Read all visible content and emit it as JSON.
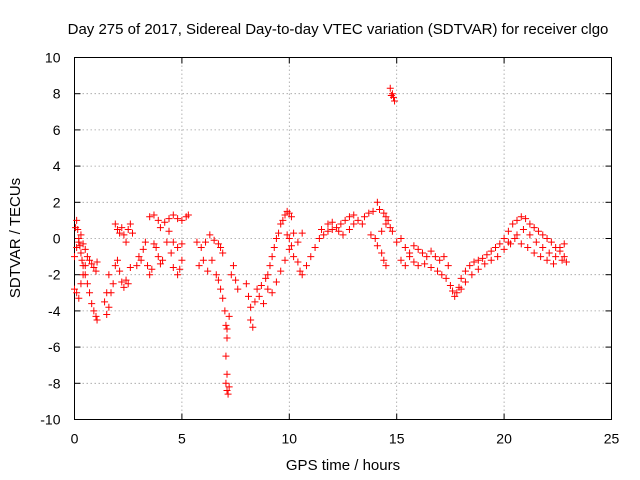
{
  "chart_data": {
    "type": "scatter",
    "title": "Day 275 of 2017, Sidereal Day-to-day VTEC variation (SDTVAR) for receiver clgo",
    "xlabel": "GPS time / hours",
    "ylabel": "SDTVAR / TECUs",
    "xlim": [
      0,
      25
    ],
    "ylim": [
      -10,
      10
    ],
    "xticks": [
      0,
      5,
      10,
      15,
      20,
      25
    ],
    "yticks": [
      -10,
      -8,
      -6,
      -4,
      -2,
      0,
      2,
      4,
      6,
      8,
      10
    ],
    "grid": true,
    "marker": "+",
    "series_color": "#ff0000",
    "series": [
      {
        "name": "SDTVAR",
        "points": [
          [
            0.0,
            -1.0
          ],
          [
            0.05,
            0.6
          ],
          [
            0.1,
            1.0
          ],
          [
            0.15,
            0.5
          ],
          [
            0.2,
            0.0
          ],
          [
            0.25,
            -0.4
          ],
          [
            0.3,
            -0.8
          ],
          [
            0.35,
            -1.2
          ],
          [
            0.4,
            -1.5
          ],
          [
            0.5,
            -2.0
          ],
          [
            0.6,
            -2.5
          ],
          [
            0.7,
            -3.0
          ],
          [
            0.8,
            -3.6
          ],
          [
            0.9,
            -4.0
          ],
          [
            1.0,
            -4.3
          ],
          [
            1.05,
            -4.5
          ],
          [
            0.0,
            -2.8
          ],
          [
            0.1,
            -3.0
          ],
          [
            0.2,
            -3.3
          ],
          [
            0.3,
            -2.5
          ],
          [
            0.4,
            -2.0
          ],
          [
            0.5,
            -1.5
          ],
          [
            0.1,
            -0.5
          ],
          [
            0.2,
            -0.2
          ],
          [
            0.3,
            0.2
          ],
          [
            0.4,
            -0.3
          ],
          [
            0.5,
            -0.6
          ],
          [
            0.6,
            -1.0
          ],
          [
            0.7,
            -1.2
          ],
          [
            0.8,
            -1.4
          ],
          [
            0.9,
            -1.6
          ],
          [
            1.0,
            -1.8
          ],
          [
            1.05,
            -1.3
          ],
          [
            1.4,
            -3.5
          ],
          [
            1.5,
            -4.2
          ],
          [
            1.6,
            -3.8
          ],
          [
            1.7,
            -3.0
          ],
          [
            1.8,
            -2.5
          ],
          [
            1.5,
            -3.0
          ],
          [
            1.6,
            -2.0
          ],
          [
            1.9,
            0.8
          ],
          [
            2.0,
            0.5
          ],
          [
            2.1,
            0.3
          ],
          [
            2.2,
            0.6
          ],
          [
            2.3,
            0.2
          ],
          [
            2.4,
            -0.2
          ],
          [
            2.5,
            0.5
          ],
          [
            2.6,
            0.8
          ],
          [
            2.7,
            0.3
          ],
          [
            1.9,
            -1.5
          ],
          [
            2.0,
            -1.2
          ],
          [
            2.1,
            -1.8
          ],
          [
            2.2,
            -2.4
          ],
          [
            2.3,
            -2.7
          ],
          [
            2.4,
            -2.3
          ],
          [
            2.5,
            -2.5
          ],
          [
            2.6,
            -1.6
          ],
          [
            2.9,
            -1.5
          ],
          [
            3.0,
            -1.0
          ],
          [
            3.1,
            -1.2
          ],
          [
            3.2,
            -0.6
          ],
          [
            3.3,
            -0.2
          ],
          [
            3.4,
            -1.5
          ],
          [
            3.5,
            -2.0
          ],
          [
            3.6,
            -1.7
          ],
          [
            3.5,
            1.2
          ],
          [
            3.7,
            1.3
          ],
          [
            3.9,
            1.0
          ],
          [
            4.0,
            0.6
          ],
          [
            4.2,
            0.9
          ],
          [
            4.4,
            1.1
          ],
          [
            4.6,
            1.3
          ],
          [
            4.8,
            1.1
          ],
          [
            5.0,
            1.0
          ],
          [
            5.2,
            1.2
          ],
          [
            5.3,
            1.3
          ],
          [
            3.7,
            -0.3
          ],
          [
            3.8,
            -0.5
          ],
          [
            3.9,
            -1.0
          ],
          [
            4.0,
            -1.4
          ],
          [
            4.1,
            -1.2
          ],
          [
            4.3,
            -0.2
          ],
          [
            4.5,
            -0.8
          ],
          [
            4.6,
            -1.6
          ],
          [
            4.8,
            -2.0
          ],
          [
            4.9,
            -1.7
          ],
          [
            5.0,
            -1.2
          ],
          [
            4.4,
            0.4
          ],
          [
            4.6,
            -0.2
          ],
          [
            4.8,
            -0.5
          ],
          [
            5.0,
            -0.3
          ],
          [
            5.7,
            -0.2
          ],
          [
            5.9,
            -0.5
          ],
          [
            6.1,
            -0.2
          ],
          [
            6.3,
            0.2
          ],
          [
            6.5,
            -0.1
          ],
          [
            6.7,
            -0.3
          ],
          [
            6.8,
            -0.5
          ],
          [
            6.9,
            -0.8
          ],
          [
            5.8,
            -1.5
          ],
          [
            6.0,
            -1.2
          ],
          [
            6.2,
            -1.8
          ],
          [
            6.4,
            -1.2
          ],
          [
            6.6,
            -2.0
          ],
          [
            6.7,
            -2.3
          ],
          [
            6.8,
            -2.8
          ],
          [
            6.9,
            -3.3
          ],
          [
            7.0,
            -4.0
          ],
          [
            7.05,
            -4.8
          ],
          [
            7.1,
            -5.5
          ],
          [
            7.05,
            -6.5
          ],
          [
            7.1,
            -7.5
          ],
          [
            7.05,
            -8.0
          ],
          [
            7.1,
            -8.4
          ],
          [
            7.15,
            -8.6
          ],
          [
            7.2,
            -8.2
          ],
          [
            7.1,
            -5.0
          ],
          [
            7.2,
            -4.3
          ],
          [
            7.3,
            -2.0
          ],
          [
            7.4,
            -1.5
          ],
          [
            7.5,
            -2.3
          ],
          [
            7.6,
            -2.8
          ],
          [
            8.0,
            -2.5
          ],
          [
            8.1,
            -3.2
          ],
          [
            8.2,
            -3.8
          ],
          [
            8.2,
            -4.5
          ],
          [
            8.3,
            -4.9
          ],
          [
            8.4,
            -3.5
          ],
          [
            8.5,
            -2.8
          ],
          [
            8.6,
            -3.2
          ],
          [
            8.7,
            -2.6
          ],
          [
            8.8,
            -3.6
          ],
          [
            8.9,
            -2.2
          ],
          [
            9.0,
            -2.0
          ],
          [
            9.1,
            -1.5
          ],
          [
            9.2,
            -1.0
          ],
          [
            9.3,
            -0.5
          ],
          [
            9.4,
            0.0
          ],
          [
            9.5,
            0.3
          ],
          [
            9.6,
            0.8
          ],
          [
            9.7,
            1.0
          ],
          [
            9.8,
            1.3
          ],
          [
            9.9,
            1.5
          ],
          [
            10.0,
            1.4
          ],
          [
            10.1,
            1.2
          ],
          [
            9.0,
            -2.8
          ],
          [
            9.2,
            -3.0
          ],
          [
            9.4,
            -2.4
          ],
          [
            9.6,
            -1.8
          ],
          [
            9.8,
            -1.2
          ],
          [
            10.0,
            -0.6
          ],
          [
            10.2,
            -1.0
          ],
          [
            10.4,
            -1.3
          ],
          [
            10.5,
            -1.8
          ],
          [
            10.6,
            -2.0
          ],
          [
            9.9,
            0.2
          ],
          [
            10.0,
            0.0
          ],
          [
            10.1,
            -0.4
          ],
          [
            10.2,
            0.3
          ],
          [
            10.4,
            -0.2
          ],
          [
            10.6,
            0.3
          ],
          [
            10.8,
            -1.5
          ],
          [
            11.0,
            -1.0
          ],
          [
            11.2,
            -0.5
          ],
          [
            11.4,
            0.0
          ],
          [
            11.6,
            0.2
          ],
          [
            11.8,
            0.4
          ],
          [
            12.0,
            0.5
          ],
          [
            12.2,
            0.6
          ],
          [
            12.4,
            0.8
          ],
          [
            12.6,
            1.0
          ],
          [
            12.8,
            1.2
          ],
          [
            13.0,
            1.3
          ],
          [
            13.2,
            1.0
          ],
          [
            13.4,
            0.8
          ],
          [
            11.5,
            0.5
          ],
          [
            11.8,
            0.8
          ],
          [
            12.0,
            0.9
          ],
          [
            12.3,
            0.4
          ],
          [
            12.5,
            0.2
          ],
          [
            12.8,
            0.5
          ],
          [
            13.0,
            0.8
          ],
          [
            13.5,
            1.2
          ],
          [
            13.7,
            1.4
          ],
          [
            13.9,
            1.5
          ],
          [
            14.1,
            2.0
          ],
          [
            14.2,
            1.6
          ],
          [
            14.4,
            1.4
          ],
          [
            14.5,
            1.2
          ],
          [
            14.6,
            1.0
          ],
          [
            14.7,
            0.6
          ],
          [
            14.8,
            0.4
          ],
          [
            13.8,
            0.2
          ],
          [
            14.0,
            0.0
          ],
          [
            14.1,
            -0.4
          ],
          [
            14.3,
            -0.8
          ],
          [
            14.4,
            -1.2
          ],
          [
            14.5,
            -1.5
          ],
          [
            14.3,
            0.4
          ],
          [
            14.5,
            0.8
          ],
          [
            14.7,
            8.3
          ],
          [
            14.8,
            8.0
          ],
          [
            14.85,
            7.8
          ],
          [
            14.9,
            7.6
          ],
          [
            14.75,
            7.9
          ],
          [
            15.0,
            -0.2
          ],
          [
            15.2,
            0.0
          ],
          [
            15.4,
            -0.5
          ],
          [
            15.6,
            -0.8
          ],
          [
            15.8,
            -0.4
          ],
          [
            16.0,
            -0.6
          ],
          [
            16.2,
            -0.8
          ],
          [
            16.4,
            -1.0
          ],
          [
            16.6,
            -0.7
          ],
          [
            16.8,
            -1.0
          ],
          [
            17.0,
            -1.2
          ],
          [
            17.2,
            -1.0
          ],
          [
            17.4,
            -1.5
          ],
          [
            15.2,
            -1.2
          ],
          [
            15.4,
            -1.5
          ],
          [
            15.6,
            -1.0
          ],
          [
            15.8,
            -1.3
          ],
          [
            16.0,
            -1.5
          ],
          [
            16.3,
            -1.4
          ],
          [
            16.6,
            -1.6
          ],
          [
            16.9,
            -1.8
          ],
          [
            17.1,
            -2.0
          ],
          [
            17.3,
            -2.2
          ],
          [
            17.5,
            -2.6
          ],
          [
            17.6,
            -2.9
          ],
          [
            17.7,
            -3.2
          ],
          [
            17.8,
            -3.0
          ],
          [
            17.9,
            -2.7
          ],
          [
            18.0,
            -2.2
          ],
          [
            18.2,
            -1.8
          ],
          [
            18.4,
            -1.5
          ],
          [
            18.6,
            -1.3
          ],
          [
            18.8,
            -1.2
          ],
          [
            19.0,
            -1.1
          ],
          [
            19.2,
            -0.9
          ],
          [
            19.4,
            -0.7
          ],
          [
            19.6,
            -0.5
          ],
          [
            19.8,
            -0.3
          ],
          [
            20.0,
            0.0
          ],
          [
            20.2,
            0.4
          ],
          [
            20.4,
            0.8
          ],
          [
            20.6,
            1.0
          ],
          [
            20.8,
            1.2
          ],
          [
            21.0,
            1.1
          ],
          [
            21.2,
            0.8
          ],
          [
            21.4,
            0.6
          ],
          [
            21.6,
            0.4
          ],
          [
            21.8,
            0.2
          ],
          [
            22.0,
            0.0
          ],
          [
            22.2,
            -0.2
          ],
          [
            22.4,
            -0.5
          ],
          [
            22.6,
            -0.7
          ],
          [
            22.8,
            -1.0
          ],
          [
            18.0,
            -2.8
          ],
          [
            18.2,
            -2.4
          ],
          [
            18.5,
            -2.0
          ],
          [
            18.8,
            -1.7
          ],
          [
            19.1,
            -1.4
          ],
          [
            19.4,
            -1.2
          ],
          [
            19.7,
            -1.0
          ],
          [
            20.0,
            -0.6
          ],
          [
            20.3,
            -0.3
          ],
          [
            20.6,
            0.2
          ],
          [
            20.9,
            0.5
          ],
          [
            21.2,
            0.2
          ],
          [
            21.5,
            -0.2
          ],
          [
            21.8,
            -0.5
          ],
          [
            22.1,
            -0.8
          ],
          [
            22.4,
            -1.0
          ],
          [
            22.7,
            -1.2
          ],
          [
            22.9,
            -1.3
          ],
          [
            20.2,
            -0.2
          ],
          [
            20.5,
            0.0
          ],
          [
            20.8,
            -0.3
          ],
          [
            21.1,
            -0.5
          ],
          [
            21.4,
            -0.8
          ],
          [
            21.7,
            -1.0
          ],
          [
            22.0,
            -1.2
          ],
          [
            22.3,
            -1.4
          ],
          [
            22.6,
            -0.5
          ],
          [
            22.8,
            -0.3
          ]
        ]
      }
    ]
  }
}
